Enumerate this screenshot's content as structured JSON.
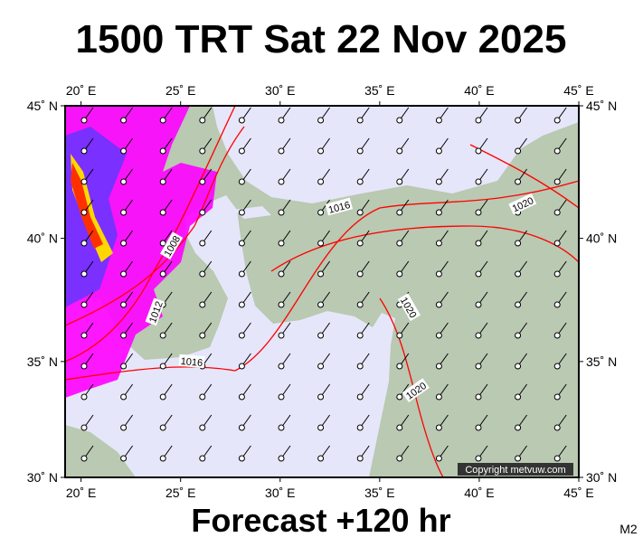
{
  "header": {
    "title": "1500 TRT Sat 22 Nov 2025"
  },
  "footer": {
    "forecast": "Forecast +120 hr",
    "model": "M2"
  },
  "map": {
    "copyright": "Copyright metvuw.com",
    "xlim": [
      19.2,
      45
    ],
    "ylim": [
      30,
      45
    ],
    "lon_ticks": [
      {
        "value": 20,
        "label": "20˚ E"
      },
      {
        "value": 25,
        "label": "25˚ E"
      },
      {
        "value": 30,
        "label": "30˚ E"
      },
      {
        "value": 35,
        "label": "35˚ E"
      },
      {
        "value": 40,
        "label": "40˚ E"
      },
      {
        "value": 45,
        "label": "45˚ E"
      }
    ],
    "lat_ticks": [
      {
        "value": 45,
        "label": "45˚ N"
      },
      {
        "value": 40,
        "label": "40˚ N"
      },
      {
        "value": 35,
        "label": "35˚ N"
      },
      {
        "value": 30,
        "label": "30˚ N"
      }
    ],
    "isobar_labels": [
      1016,
      1008,
      1012,
      1016,
      1020,
      1020,
      1020
    ]
  }
}
